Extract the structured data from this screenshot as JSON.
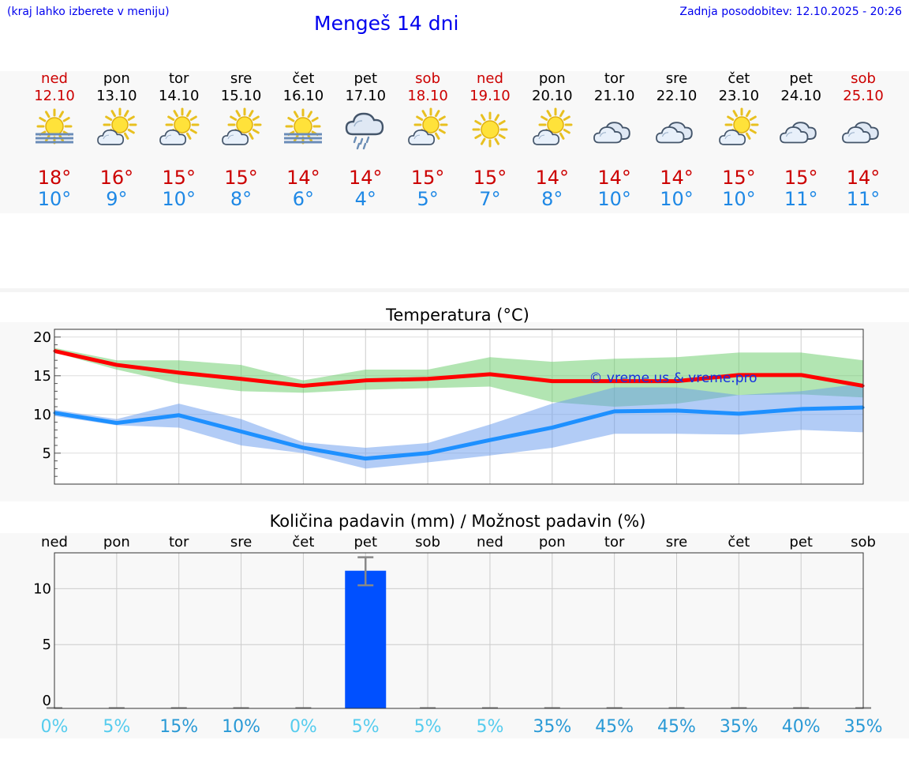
{
  "header": {
    "hint": "(kraj lahko izberete v meniju)",
    "title": "Mengeš 14 dni",
    "updated": "Zadnja posodobitev: 12.10.2025 - 20:26"
  },
  "days": [
    {
      "name": "ned",
      "date": "12.10",
      "icon": "sun-fog-icon",
      "max": "18°",
      "min": "10°",
      "weekend": true
    },
    {
      "name": "pon",
      "date": "13.10",
      "icon": "partly-cloudy-icon",
      "max": "16°",
      "min": "9°",
      "weekend": false
    },
    {
      "name": "tor",
      "date": "14.10",
      "icon": "partly-cloudy-icon",
      "max": "15°",
      "min": "10°",
      "weekend": false
    },
    {
      "name": "sre",
      "date": "15.10",
      "icon": "partly-cloudy-icon",
      "max": "15°",
      "min": "8°",
      "weekend": false
    },
    {
      "name": "čet",
      "date": "16.10",
      "icon": "sun-fog-icon",
      "max": "14°",
      "min": "6°",
      "weekend": false
    },
    {
      "name": "pet",
      "date": "17.10",
      "icon": "rain-cloud-icon",
      "max": "14°",
      "min": "4°",
      "weekend": false
    },
    {
      "name": "sob",
      "date": "18.10",
      "icon": "partly-cloudy-icon",
      "max": "15°",
      "min": "5°",
      "weekend": true
    },
    {
      "name": "ned",
      "date": "19.10",
      "icon": "sun-icon",
      "max": "15°",
      "min": "7°",
      "weekend": true
    },
    {
      "name": "pon",
      "date": "20.10",
      "icon": "partly-cloudy-icon",
      "max": "14°",
      "min": "8°",
      "weekend": false
    },
    {
      "name": "tor",
      "date": "21.10",
      "icon": "cloud-icon",
      "max": "14°",
      "min": "10°",
      "weekend": false
    },
    {
      "name": "sre",
      "date": "22.10",
      "icon": "cloud-icon",
      "max": "14°",
      "min": "10°",
      "weekend": false
    },
    {
      "name": "čet",
      "date": "23.10",
      "icon": "partly-cloudy-icon",
      "max": "15°",
      "min": "10°",
      "weekend": false
    },
    {
      "name": "pet",
      "date": "24.10",
      "icon": "cloud-icon",
      "max": "15°",
      "min": "11°",
      "weekend": false
    },
    {
      "name": "sob",
      "date": "25.10",
      "icon": "cloud-icon",
      "max": "14°",
      "min": "11°",
      "weekend": true
    }
  ],
  "chart_data": [
    {
      "type": "line",
      "title": "Temperatura (°C)",
      "x": [
        "ned",
        "pon",
        "tor",
        "sre",
        "čet",
        "pet",
        "sob",
        "ned",
        "pon",
        "tor",
        "sre",
        "čet",
        "pet",
        "sob"
      ],
      "ylim": [
        1,
        21
      ],
      "yticks": [
        5,
        10,
        15,
        20
      ],
      "watermark": "© vreme.us & vreme.pro",
      "series": [
        {
          "name": "max",
          "color": "#ff0000",
          "values": [
            18.2,
            16.4,
            15.4,
            14.6,
            13.7,
            14.4,
            14.6,
            15.2,
            14.3,
            14.3,
            14.3,
            15.1,
            15.1,
            13.7
          ]
        },
        {
          "name": "min",
          "color": "#1e90ff",
          "values": [
            10.2,
            8.9,
            9.9,
            7.8,
            5.7,
            4.3,
            5.0,
            6.7,
            8.3,
            10.4,
            10.5,
            10.1,
            10.7,
            10.9
          ]
        }
      ],
      "bands": [
        {
          "name": "max-range",
          "color": "#66cc66",
          "low": [
            18.0,
            15.8,
            14.0,
            13.0,
            12.8,
            13.2,
            13.4,
            13.6,
            11.6,
            11.0,
            11.4,
            12.5,
            12.6,
            12.2
          ],
          "high": [
            18.6,
            17.0,
            17.0,
            16.4,
            14.4,
            15.8,
            15.8,
            17.4,
            16.8,
            17.2,
            17.4,
            18.0,
            18.0,
            17.0
          ]
        },
        {
          "name": "min-range",
          "color": "#6699ee",
          "low": [
            9.8,
            8.6,
            8.3,
            6.0,
            5.0,
            3.0,
            3.8,
            4.7,
            5.7,
            7.5,
            7.5,
            7.4,
            8.0,
            7.7
          ]
        },
        {
          "name": "min-range-high",
          "values": [
            10.6,
            9.4,
            11.4,
            9.4,
            6.4,
            5.7,
            6.3,
            8.7,
            11.4,
            13.5,
            13.5,
            12.5,
            13.0,
            14.0
          ]
        }
      ]
    },
    {
      "type": "bar",
      "title": "Količina padavin (mm) / Možnost padavin (%)",
      "categories": [
        "ned",
        "pon",
        "tor",
        "sre",
        "čet",
        "pet",
        "sob",
        "ned",
        "pon",
        "tor",
        "sre",
        "čet",
        "pet",
        "sob"
      ],
      "values": [
        0,
        0,
        0,
        0,
        0,
        11.6,
        0,
        0,
        0,
        0,
        0,
        0,
        0,
        0
      ],
      "error": [
        null,
        null,
        null,
        null,
        null,
        [
          10.3,
          12.8
        ],
        null,
        null,
        null,
        null,
        null,
        null,
        null,
        null
      ],
      "ylim": [
        -0.7,
        13.2
      ],
      "yticks": [
        0,
        5,
        10
      ],
      "probability": [
        "0%",
        "5%",
        "15%",
        "10%",
        "0%",
        "5%",
        "5%",
        "5%",
        "35%",
        "45%",
        "45%",
        "35%",
        "40%",
        "35%"
      ]
    }
  ],
  "colors": {
    "weekend": "#cc0000",
    "weekday": "#000000",
    "tmax": "#cc0000",
    "tmin": "#1e88e5",
    "bar": "#0050ff",
    "prob_low": "#55ccee",
    "prob_high": "#2a9ad6"
  }
}
